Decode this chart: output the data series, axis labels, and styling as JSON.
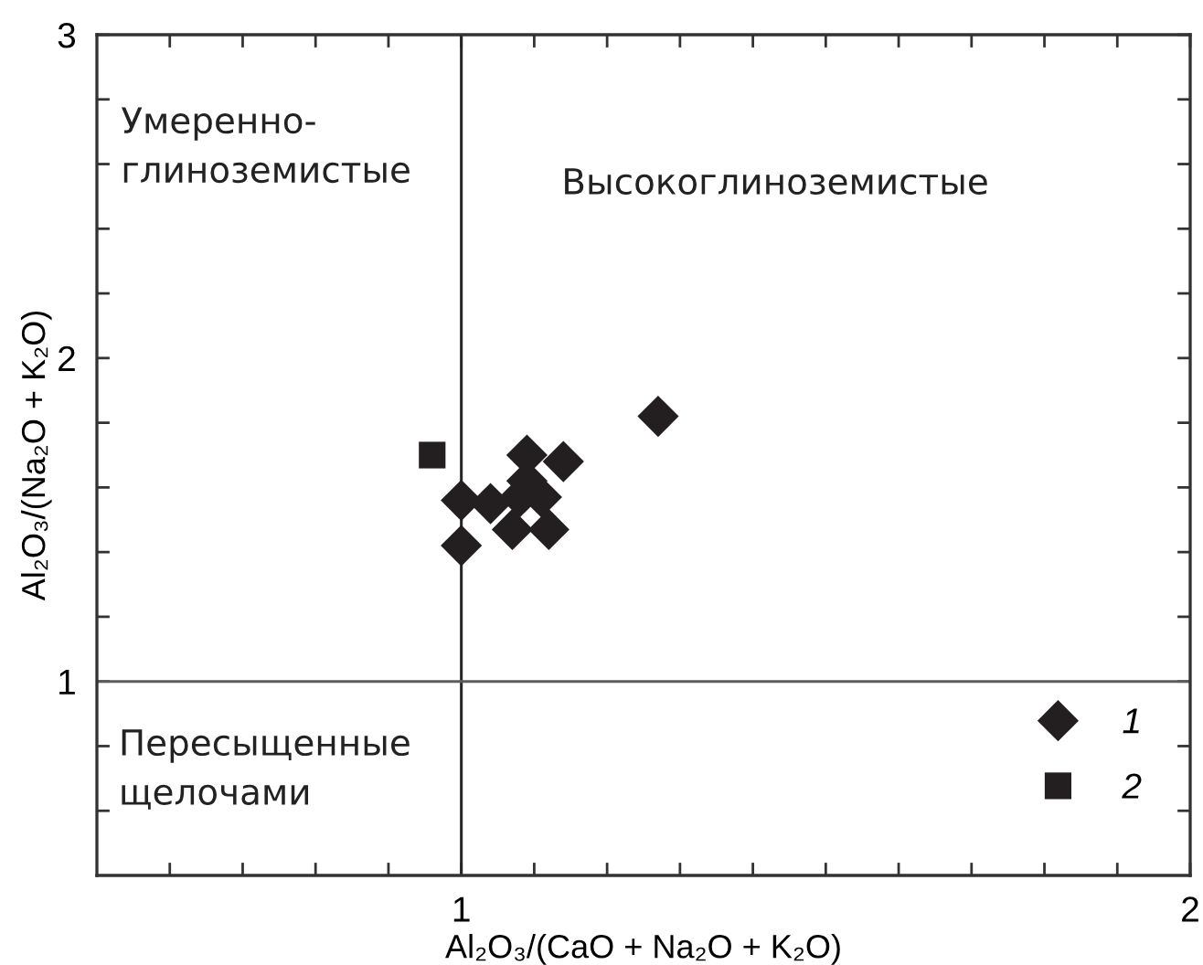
{
  "chart_data": {
    "type": "scatter",
    "xlabel": "Al₂O₃/(CaO + Na₂O + K₂O)",
    "ylabel": "Al₂O₃/(Na₂O + K₂O)",
    "series": [
      {
        "name": "1",
        "color": "#231f20",
        "marker": "diamond",
        "x": [
          1.27,
          1.0,
          1.0,
          1.09,
          1.14,
          1.07,
          1.12,
          1.04,
          1.08,
          1.09,
          1.11
        ],
        "values": [
          1.82,
          1.56,
          1.42,
          1.7,
          1.68,
          1.47,
          1.47,
          1.55,
          1.57,
          1.62,
          1.57
        ]
      },
      {
        "name": "2",
        "color": "#231f20",
        "marker": "square",
        "x": [
          0.96
        ],
        "values": [
          1.7
        ]
      }
    ],
    "xlim": [
      0.5,
      2
    ],
    "xticks": [
      {
        "value": 0.6,
        "label": null
      },
      {
        "value": 0.7,
        "label": null
      },
      {
        "value": 0.8,
        "label": null
      },
      {
        "value": 0.9,
        "label": null
      },
      1,
      {
        "value": 1.1,
        "label": null
      },
      {
        "value": 1.2,
        "label": null
      },
      {
        "value": 1.3,
        "label": null
      },
      {
        "value": 1.4,
        "label": null
      },
      {
        "value": 1.5,
        "label": null
      },
      {
        "value": 1.6,
        "label": null
      },
      {
        "value": 1.7,
        "label": null
      },
      {
        "value": 1.8,
        "label": null
      },
      {
        "value": 1.9,
        "label": null
      },
      2
    ],
    "ylim": [
      0.4,
      3
    ],
    "yticks": [
      {
        "value": 0.6,
        "label": null
      },
      {
        "value": 0.8,
        "label": null
      },
      1,
      {
        "value": 1.2,
        "label": null
      },
      {
        "value": 1.4,
        "label": null
      },
      {
        "value": 1.6,
        "label": null
      },
      {
        "value": 1.8,
        "label": null
      },
      2,
      {
        "value": 2.2,
        "label": null
      },
      {
        "value": 2.4,
        "label": null
      },
      {
        "value": 2.6,
        "label": null
      },
      {
        "value": 2.8,
        "label": null
      },
      3
    ],
    "ref_lines": [
      {
        "axis": "x",
        "value": 1,
        "color": "#262626",
        "line_style": "solid"
      },
      {
        "axis": "y",
        "value": 1,
        "color": "#5c5c5c",
        "line_style": "solid"
      }
    ],
    "annotations": [
      "Умеренно-\nглиноземистые",
      "Высокоглиноземистые",
      "Пересыщенные\nщелочами"
    ],
    "legend": "bottom right"
  }
}
